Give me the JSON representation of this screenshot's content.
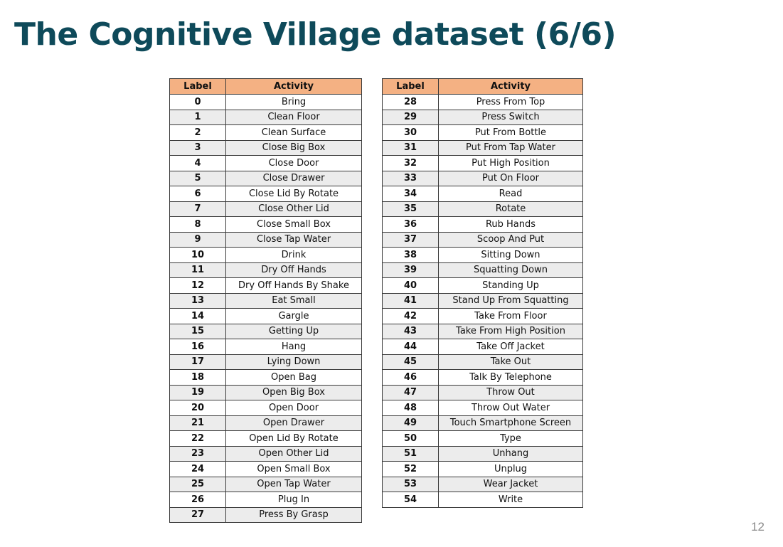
{
  "title": "The Cognitive Village dataset (6/6)",
  "page_number": "12",
  "header": {
    "label": "Label",
    "activity": "Activity"
  },
  "left_table": [
    {
      "label": "0",
      "activity": "Bring"
    },
    {
      "label": "1",
      "activity": "Clean Floor"
    },
    {
      "label": "2",
      "activity": "Clean Surface"
    },
    {
      "label": "3",
      "activity": "Close Big Box"
    },
    {
      "label": "4",
      "activity": "Close Door"
    },
    {
      "label": "5",
      "activity": "Close Drawer"
    },
    {
      "label": "6",
      "activity": "Close Lid By Rotate"
    },
    {
      "label": "7",
      "activity": "Close Other Lid"
    },
    {
      "label": "8",
      "activity": "Close Small Box"
    },
    {
      "label": "9",
      "activity": "Close Tap Water"
    },
    {
      "label": "10",
      "activity": "Drink"
    },
    {
      "label": "11",
      "activity": "Dry Off Hands"
    },
    {
      "label": "12",
      "activity": "Dry Off Hands By Shake"
    },
    {
      "label": "13",
      "activity": "Eat Small"
    },
    {
      "label": "14",
      "activity": "Gargle"
    },
    {
      "label": "15",
      "activity": "Getting Up"
    },
    {
      "label": "16",
      "activity": "Hang"
    },
    {
      "label": "17",
      "activity": "Lying Down"
    },
    {
      "label": "18",
      "activity": "Open Bag"
    },
    {
      "label": "19",
      "activity": "Open Big Box"
    },
    {
      "label": "20",
      "activity": "Open Door"
    },
    {
      "label": "21",
      "activity": "Open Drawer"
    },
    {
      "label": "22",
      "activity": "Open Lid By Rotate"
    },
    {
      "label": "23",
      "activity": "Open Other Lid"
    },
    {
      "label": "24",
      "activity": "Open Small Box"
    },
    {
      "label": "25",
      "activity": "Open Tap Water"
    },
    {
      "label": "26",
      "activity": "Plug In"
    },
    {
      "label": "27",
      "activity": "Press By Grasp"
    }
  ],
  "right_table": [
    {
      "label": "28",
      "activity": "Press From Top"
    },
    {
      "label": "29",
      "activity": "Press Switch"
    },
    {
      "label": "30",
      "activity": "Put From Bottle"
    },
    {
      "label": "31",
      "activity": "Put From Tap Water"
    },
    {
      "label": "32",
      "activity": "Put High Position"
    },
    {
      "label": "33",
      "activity": "Put On Floor"
    },
    {
      "label": "34",
      "activity": "Read"
    },
    {
      "label": "35",
      "activity": "Rotate"
    },
    {
      "label": "36",
      "activity": "Rub Hands"
    },
    {
      "label": "37",
      "activity": "Scoop And Put"
    },
    {
      "label": "38",
      "activity": "Sitting Down"
    },
    {
      "label": "39",
      "activity": "Squatting Down"
    },
    {
      "label": "40",
      "activity": "Standing Up"
    },
    {
      "label": "41",
      "activity": "Stand Up From Squatting"
    },
    {
      "label": "42",
      "activity": "Take From Floor"
    },
    {
      "label": "43",
      "activity": "Take From High Position"
    },
    {
      "label": "44",
      "activity": "Take Off Jacket"
    },
    {
      "label": "45",
      "activity": "Take Out"
    },
    {
      "label": "46",
      "activity": "Talk By Telephone"
    },
    {
      "label": "47",
      "activity": "Throw Out"
    },
    {
      "label": "48",
      "activity": "Throw Out Water"
    },
    {
      "label": "49",
      "activity": "Touch Smartphone Screen"
    },
    {
      "label": "50",
      "activity": "Type"
    },
    {
      "label": "51",
      "activity": "Unhang"
    },
    {
      "label": "52",
      "activity": "Unplug"
    },
    {
      "label": "53",
      "activity": "Wear Jacket"
    },
    {
      "label": "54",
      "activity": "Write"
    }
  ],
  "colors": {
    "title": "#0e4a5a",
    "header_fill": "#f4b183",
    "stripe_fill": "#ececec",
    "page_number": "#8a8a8a"
  }
}
